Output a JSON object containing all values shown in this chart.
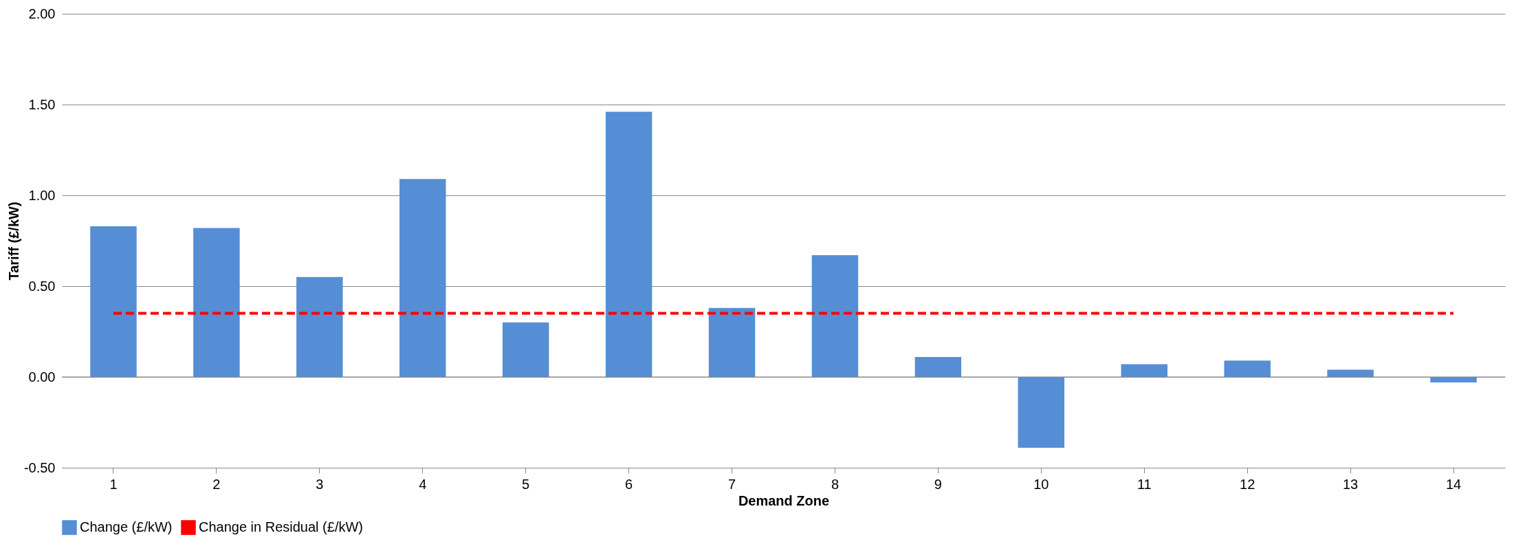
{
  "chart_data": {
    "type": "bar",
    "xlabel": "Demand Zone",
    "ylabel": "Tariff (£/kW)",
    "categories": [
      "1",
      "2",
      "3",
      "4",
      "5",
      "6",
      "7",
      "8",
      "9",
      "10",
      "11",
      "12",
      "13",
      "14"
    ],
    "series": [
      {
        "name": "Change (£/kW)",
        "color": "#558ed5",
        "values": [
          0.83,
          0.82,
          0.55,
          1.09,
          0.3,
          1.46,
          0.38,
          0.67,
          0.11,
          -0.39,
          0.07,
          0.09,
          0.04,
          -0.03
        ]
      },
      {
        "name": "Change in Residual (£/kW)",
        "color": "#ff0000",
        "type": "line",
        "line_style": "dashed",
        "values": [
          0.35,
          0.35,
          0.35,
          0.35,
          0.35,
          0.35,
          0.35,
          0.35,
          0.35,
          0.35,
          0.35,
          0.35,
          0.35,
          0.35
        ]
      }
    ],
    "ylim": [
      -0.5,
      2.0
    ],
    "yticks": [
      {
        "value": -0.5,
        "label": "-0.50"
      },
      {
        "value": 0,
        "label": "0.00"
      },
      {
        "value": 0.5,
        "label": "0.50"
      },
      {
        "value": 1.0,
        "label": "1.00"
      },
      {
        "value": 1.5,
        "label": "1.50"
      },
      {
        "value": 2.0,
        "label": "2.00"
      }
    ],
    "grid": "y",
    "legend": "bottom"
  }
}
